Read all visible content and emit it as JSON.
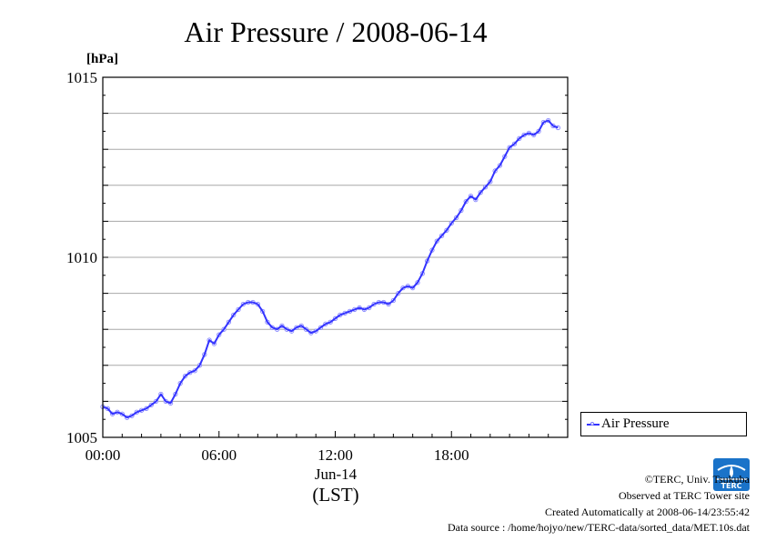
{
  "chart_data": {
    "type": "line",
    "title": "Air Pressure / 2008-06-14",
    "ylabel": "[hPa]",
    "xlabel_date": "Jun-14",
    "xlabel_zone": "(LST)",
    "ylim": [
      1005,
      1015
    ],
    "xlim": [
      0,
      24
    ],
    "yticks": [
      {
        "value": 1005,
        "label": "1005"
      },
      {
        "value": 1010,
        "label": "1010"
      },
      {
        "value": 1015,
        "label": "1015"
      }
    ],
    "xticks": [
      {
        "value": 0,
        "label": "00:00"
      },
      {
        "value": 6,
        "label": "06:00"
      },
      {
        "value": 12,
        "label": "12:00"
      },
      {
        "value": 18,
        "label": "18:00"
      }
    ],
    "grid": true,
    "legend_position": "bottom-right-outside",
    "series": [
      {
        "name": "Air Pressure",
        "color": "#3333ff",
        "marker_color": "#8888ff",
        "x": [
          0,
          0.25,
          0.5,
          0.75,
          1,
          1.25,
          1.5,
          1.75,
          2,
          2.25,
          2.5,
          2.75,
          3,
          3.25,
          3.5,
          3.75,
          4,
          4.25,
          4.5,
          4.75,
          5,
          5.25,
          5.5,
          5.75,
          6,
          6.25,
          6.5,
          6.75,
          7,
          7.25,
          7.5,
          7.75,
          8,
          8.25,
          8.5,
          8.75,
          9,
          9.25,
          9.5,
          9.75,
          10,
          10.25,
          10.5,
          10.75,
          11,
          11.25,
          11.5,
          11.75,
          12,
          12.25,
          12.5,
          12.75,
          13,
          13.25,
          13.5,
          13.75,
          14,
          14.25,
          14.5,
          14.75,
          15,
          15.25,
          15.5,
          15.75,
          16,
          16.25,
          16.5,
          16.75,
          17,
          17.25,
          17.5,
          17.75,
          18,
          18.25,
          18.5,
          18.75,
          19,
          19.25,
          19.5,
          19.75,
          20,
          20.25,
          20.5,
          20.75,
          21,
          21.25,
          21.5,
          21.75,
          22,
          22.25,
          22.5,
          22.75,
          23,
          23.25,
          23.5
        ],
        "values": [
          1005.85,
          1005.8,
          1005.65,
          1005.7,
          1005.65,
          1005.55,
          1005.6,
          1005.7,
          1005.75,
          1005.8,
          1005.9,
          1006.0,
          1006.2,
          1006.0,
          1005.95,
          1006.2,
          1006.5,
          1006.7,
          1006.8,
          1006.85,
          1007.0,
          1007.3,
          1007.7,
          1007.6,
          1007.85,
          1008.0,
          1008.2,
          1008.4,
          1008.55,
          1008.7,
          1008.75,
          1008.75,
          1008.7,
          1008.5,
          1008.2,
          1008.05,
          1008.0,
          1008.1,
          1008.0,
          1007.95,
          1008.05,
          1008.1,
          1008.0,
          1007.9,
          1007.95,
          1008.05,
          1008.15,
          1008.2,
          1008.3,
          1008.4,
          1008.45,
          1008.5,
          1008.55,
          1008.6,
          1008.55,
          1008.6,
          1008.7,
          1008.75,
          1008.75,
          1008.7,
          1008.8,
          1009.0,
          1009.15,
          1009.2,
          1009.15,
          1009.3,
          1009.55,
          1009.9,
          1010.2,
          1010.45,
          1010.6,
          1010.75,
          1010.95,
          1011.1,
          1011.3,
          1011.55,
          1011.7,
          1011.6,
          1011.8,
          1011.95,
          1012.1,
          1012.4,
          1012.55,
          1012.8,
          1013.05,
          1013.15,
          1013.3,
          1013.4,
          1013.45,
          1013.4,
          1013.5,
          1013.75,
          1013.8,
          1013.65,
          1013.6
        ]
      }
    ]
  },
  "credits": {
    "line1": "©TERC, Univ. Tsukuba",
    "line2": "Observed at TERC Tower site",
    "line3": "Created Automatically at 2008-06-14/23:55:42",
    "line4": "Data source : /home/hojyo/new/TERC-data/sorted_data/MET.10s.dat",
    "logo_text": "TERC"
  }
}
